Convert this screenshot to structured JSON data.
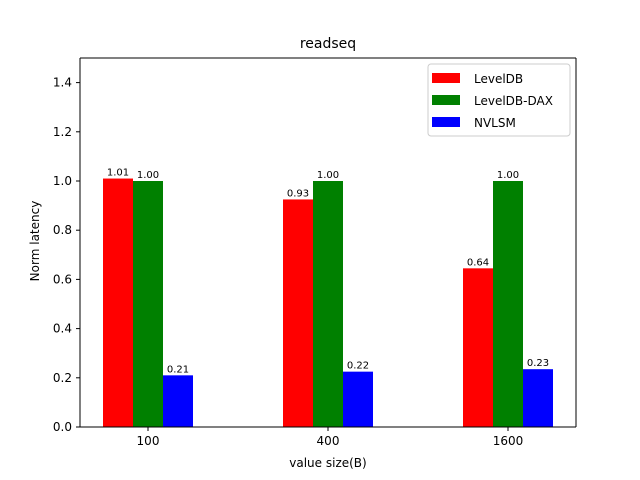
{
  "chart_data": {
    "type": "bar",
    "title": "readseq",
    "xlabel": "value size(B)",
    "ylabel": "Norm latency",
    "categories": [
      "100",
      "400",
      "1600"
    ],
    "series": [
      {
        "name": "LevelDB",
        "color": "#ff0000",
        "values": [
          1.01,
          0.925,
          0.645
        ],
        "labels": [
          "1.01",
          "0.93",
          "0.64"
        ]
      },
      {
        "name": "LevelDB-DAX",
        "color": "#008000",
        "values": [
          1.0,
          1.0,
          1.0
        ],
        "labels": [
          "1.00",
          "1.00",
          "1.00"
        ]
      },
      {
        "name": "NVLSM",
        "color": "#0000ff",
        "values": [
          0.21,
          0.225,
          0.235
        ],
        "labels": [
          "0.21",
          "0.22",
          "0.23"
        ]
      }
    ],
    "ylim": [
      0,
      1.5
    ],
    "yticks": [
      "0.0",
      "0.2",
      "0.4",
      "0.6",
      "0.8",
      "1.0",
      "1.2",
      "1.4"
    ],
    "grid": false,
    "legend_position": "top-right"
  }
}
